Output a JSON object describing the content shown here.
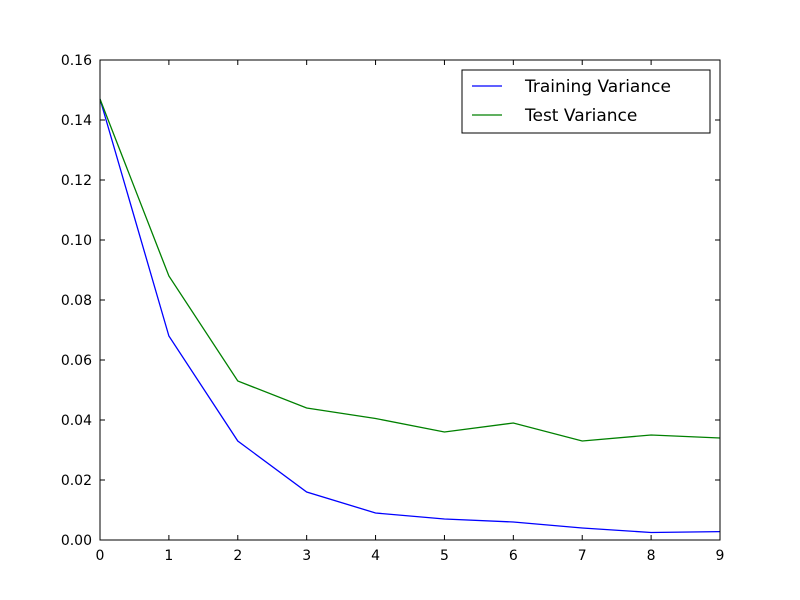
{
  "chart_data": {
    "type": "line",
    "x": [
      0,
      1,
      2,
      3,
      4,
      5,
      6,
      7,
      8,
      9
    ],
    "xlim": [
      0,
      9
    ],
    "ylim": [
      0,
      0.16
    ],
    "x_ticks": [
      "0",
      "1",
      "2",
      "3",
      "4",
      "5",
      "6",
      "7",
      "8",
      "9"
    ],
    "y_ticks": [
      "0.00",
      "0.02",
      "0.04",
      "0.06",
      "0.08",
      "0.10",
      "0.12",
      "0.14",
      "0.16"
    ],
    "grid": false,
    "legend_position": "top-right",
    "series": [
      {
        "name": "Training Variance",
        "color": "#0000ff",
        "values": [
          0.147,
          0.068,
          0.033,
          0.016,
          0.009,
          0.007,
          0.006,
          0.004,
          0.0025,
          0.0028
        ]
      },
      {
        "name": "Test Variance",
        "color": "#008000",
        "values": [
          0.147,
          0.088,
          0.053,
          0.044,
          0.0405,
          0.036,
          0.039,
          0.033,
          0.035,
          0.034
        ]
      }
    ]
  }
}
